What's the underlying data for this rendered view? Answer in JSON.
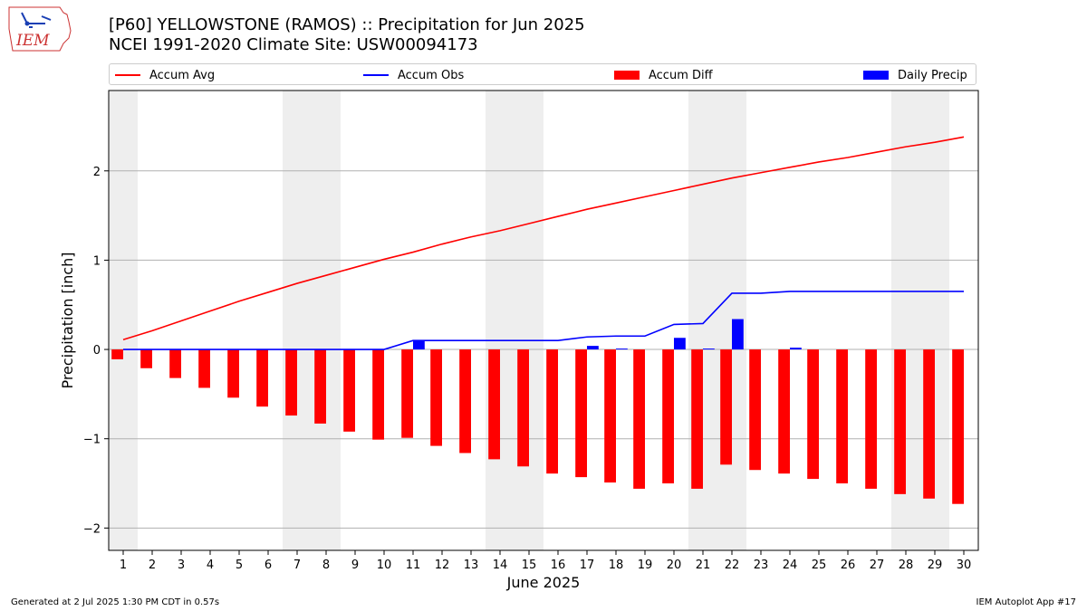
{
  "header": {
    "title_line1": "[P60] YELLOWSTONE (RAMOS) :: Precipitation for Jun 2025",
    "title_line2": "NCEI 1991-2020 Climate Site: USW00094173",
    "logo_text": "IEM"
  },
  "legend": {
    "accum_avg": "Accum Avg",
    "accum_obs": "Accum Obs",
    "accum_diff": "Accum Diff",
    "daily_precip": "Daily Precip"
  },
  "footer": {
    "generated": "Generated at 2 Jul 2025 1:30 PM CDT in 0.57s",
    "app": "IEM Autoplot App #17"
  },
  "colors": {
    "accum_avg": "#ff0000",
    "accum_obs": "#0000ff",
    "accum_diff": "#ff0000",
    "daily_precip": "#0000ff",
    "weekend_shading": "#eeeeee",
    "grid": "#b0b0b0"
  },
  "chart_data": {
    "type": "bar",
    "xlabel": "June 2025",
    "ylabel": "Precipitation [inch]",
    "ylim": [
      -2.25,
      2.9
    ],
    "yticks": [
      -2,
      -1,
      0,
      1,
      2
    ],
    "ytick_labels": [
      "−2",
      "−1",
      "0",
      "1",
      "2"
    ],
    "xlim": [
      0.5,
      30.5
    ],
    "x": [
      1,
      2,
      3,
      4,
      5,
      6,
      7,
      8,
      9,
      10,
      11,
      12,
      13,
      14,
      15,
      16,
      17,
      18,
      19,
      20,
      21,
      22,
      23,
      24,
      25,
      26,
      27,
      28,
      29,
      30
    ],
    "xtick_labels": [
      "1",
      "2",
      "3",
      "4",
      "5",
      "6",
      "7",
      "8",
      "9",
      "10",
      "11",
      "12",
      "13",
      "14",
      "15",
      "16",
      "17",
      "18",
      "19",
      "20",
      "21",
      "22",
      "23",
      "24",
      "25",
      "26",
      "27",
      "28",
      "29",
      "30"
    ],
    "shaded_days": [
      1,
      7,
      8,
      14,
      15,
      21,
      22,
      28,
      29
    ],
    "grid": "horizontal",
    "legend_position": "top",
    "series": [
      {
        "name": "Accum Avg",
        "type": "line",
        "values": [
          0.11,
          0.21,
          0.32,
          0.43,
          0.54,
          0.64,
          0.74,
          0.83,
          0.92,
          1.01,
          1.09,
          1.18,
          1.26,
          1.33,
          1.41,
          1.49,
          1.57,
          1.64,
          1.71,
          1.78,
          1.85,
          1.92,
          1.98,
          2.04,
          2.1,
          2.15,
          2.21,
          2.27,
          2.32,
          2.38
        ]
      },
      {
        "name": "Accum Obs",
        "type": "line",
        "values": [
          0,
          0,
          0,
          0,
          0,
          0,
          0,
          0,
          0,
          0,
          0.1,
          0.1,
          0.1,
          0.1,
          0.1,
          0.1,
          0.14,
          0.15,
          0.15,
          0.28,
          0.29,
          0.63,
          0.63,
          0.65,
          0.65,
          0.65,
          0.65,
          0.65,
          0.65,
          0.65
        ]
      },
      {
        "name": "Accum Diff",
        "type": "bar",
        "values": [
          -0.11,
          -0.21,
          -0.32,
          -0.43,
          -0.54,
          -0.64,
          -0.74,
          -0.83,
          -0.92,
          -1.01,
          -0.99,
          -1.08,
          -1.16,
          -1.23,
          -1.31,
          -1.39,
          -1.43,
          -1.49,
          -1.56,
          -1.5,
          -1.56,
          -1.29,
          -1.35,
          -1.39,
          -1.45,
          -1.5,
          -1.56,
          -1.62,
          -1.67,
          -1.73
        ]
      },
      {
        "name": "Daily Precip",
        "type": "bar",
        "values": [
          0,
          0,
          0,
          0,
          0,
          0,
          0,
          0,
          0,
          0,
          0.1,
          0,
          0,
          0,
          0,
          0,
          0.04,
          0.01,
          0,
          0.13,
          0.01,
          0.34,
          0,
          0.02,
          0,
          0,
          0,
          0,
          0,
          0
        ]
      }
    ]
  }
}
